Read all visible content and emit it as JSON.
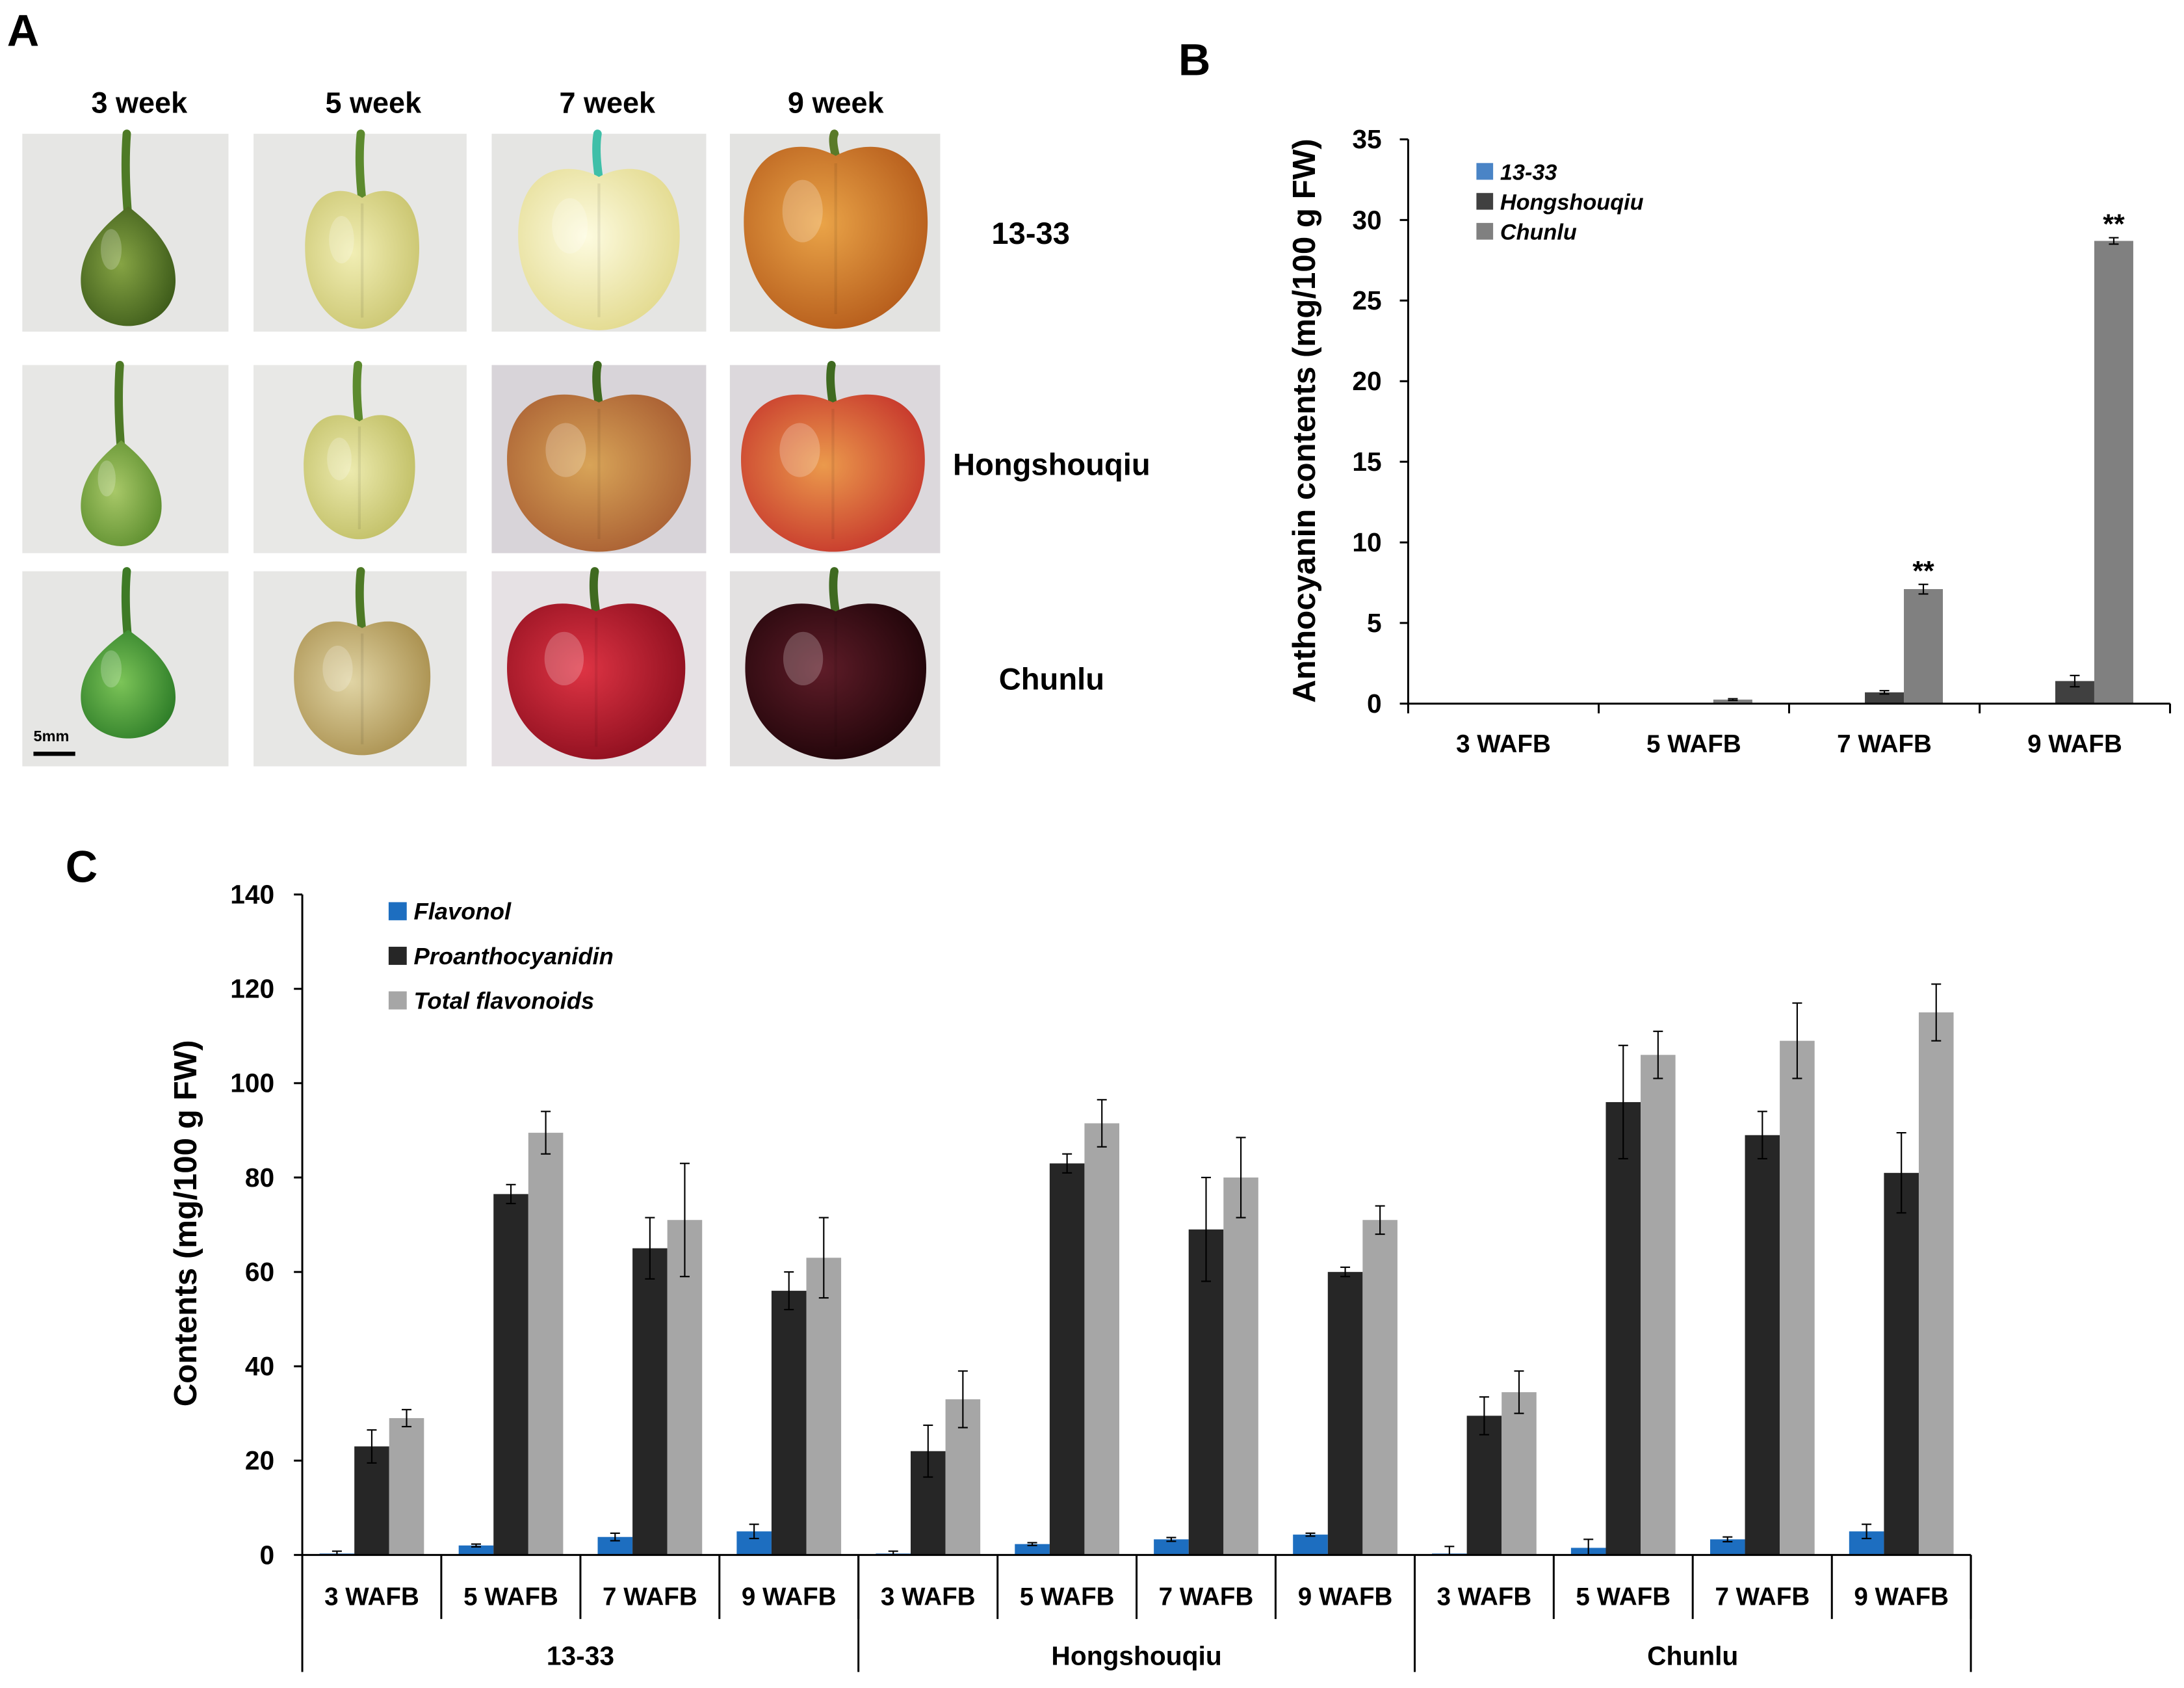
{
  "panel_a": {
    "label": "A",
    "columns": [
      "3 week",
      "5 week",
      "7 week",
      "9 week"
    ],
    "rows": [
      "13-33",
      "Hongshouqiu",
      "Chunlu"
    ],
    "scale_bar": "5mm"
  },
  "chart_data": [
    {
      "panel_label": "B",
      "type": "bar",
      "ylabel": "Anthocyanin contents (mg/100 g FW)",
      "ylim": [
        0,
        35
      ],
      "yticks": [
        0,
        5,
        10,
        15,
        20,
        25,
        30,
        35
      ],
      "categories": [
        "3 WAFB",
        "5 WAFB",
        "7 WAFB",
        "9 WAFB"
      ],
      "series": [
        {
          "name": "13-33",
          "color": "#4a84c6",
          "values": [
            0,
            0,
            0,
            0
          ],
          "errors": [
            0,
            0,
            0,
            0
          ]
        },
        {
          "name": "Hongshouqiu",
          "color": "#404040",
          "values": [
            0,
            0,
            0.7,
            1.4
          ],
          "errors": [
            0,
            0,
            0.1,
            0.35
          ]
        },
        {
          "name": "Chunlu",
          "color": "#808080",
          "values": [
            0,
            0.25,
            7.1,
            28.7
          ],
          "errors": [
            0,
            0.05,
            0.3,
            0.2
          ]
        }
      ],
      "annotations": [
        {
          "category_index": 2,
          "series_index": 2,
          "text": "**"
        },
        {
          "category_index": 3,
          "series_index": 2,
          "text": "**"
        }
      ],
      "legend": "top-left",
      "grid": false
    },
    {
      "panel_label": "C",
      "type": "bar",
      "ylabel": "Contents (mg/100 g FW)",
      "ylim": [
        0,
        140
      ],
      "yticks": [
        0,
        20,
        40,
        60,
        80,
        100,
        120,
        140
      ],
      "categories": [
        "3 WAFB",
        "5 WAFB",
        "7 WAFB",
        "9 WAFB",
        "3 WAFB",
        "5 WAFB",
        "7 WAFB",
        "9 WAFB",
        "3 WAFB",
        "5 WAFB",
        "7 WAFB",
        "9 WAFB"
      ],
      "groups": [
        {
          "label": "13-33",
          "span": 4
        },
        {
          "label": "Hongshouqiu",
          "span": 4
        },
        {
          "label": "Chunlu",
          "span": 4
        }
      ],
      "series": [
        {
          "name": "Flavonol",
          "color": "#1d6ec0",
          "values": [
            0.3,
            2.0,
            3.8,
            5.0,
            0.3,
            2.3,
            3.3,
            4.3,
            0.3,
            1.5,
            3.3,
            5.0
          ],
          "errors": [
            0.5,
            0.3,
            0.8,
            1.5,
            0.5,
            0.3,
            0.4,
            0.3,
            1.5,
            1.8,
            0.5,
            1.5
          ]
        },
        {
          "name": "Proanthocyanidin",
          "color": "#262626",
          "values": [
            23,
            76.5,
            65,
            56,
            22,
            83,
            69,
            60,
            29.5,
            96,
            89,
            81
          ],
          "errors": [
            3.5,
            2,
            6.5,
            4,
            5.5,
            2,
            11,
            1,
            4,
            12,
            5,
            8.5
          ]
        },
        {
          "name": "Total flavonoids",
          "color": "#a6a6a6",
          "values": [
            29,
            89.5,
            71,
            63,
            33,
            91.5,
            80,
            71,
            34.5,
            106,
            109,
            115
          ],
          "errors": [
            1.8,
            4.5,
            12,
            8.5,
            6,
            5,
            8.5,
            3,
            4.5,
            5,
            8,
            6
          ]
        }
      ],
      "legend": "top-left",
      "grid": false
    }
  ]
}
